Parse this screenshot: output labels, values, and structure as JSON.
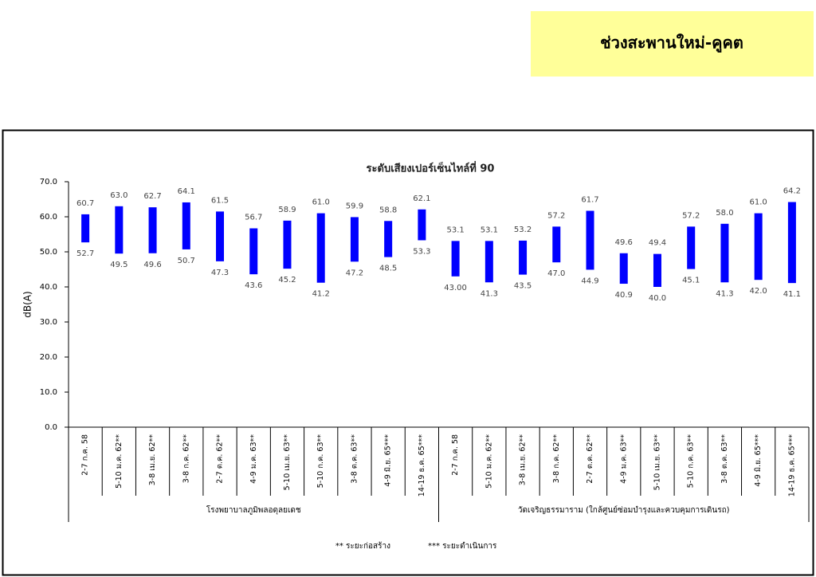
{
  "header": {
    "title": "ช่วงสะพานใหม่-คูคต"
  },
  "chart_data": {
    "type": "range",
    "title": "ระดับเสียงเปอร์เซ็นไทล์ที่ 90",
    "y_label": "dB(A)",
    "color": "#0000ff",
    "groups": [
      {
        "label": "โรงพยาบาลภูมิพลอดุลยเดช",
        "categories": [
          "2-7 ก.ค. 58",
          "5-10 ม.ค. 62**",
          "3-8 เม.ย. 62**",
          "3-8 ก.ค. 62**",
          "2-7 ต.ค. 62**",
          "4-9 ม.ค. 63**",
          "5-10 เม.ย. 63**",
          "5-10 ก.ค. 63**",
          "3-8 ต.ค. 63**",
          "4-9 มิ.ย. 65***",
          "14-19 ธ.ค. 65***"
        ],
        "high": [
          60.7,
          63.0,
          62.7,
          64.1,
          61.5,
          56.7,
          58.9,
          61.0,
          59.9,
          58.8,
          62.1
        ],
        "high_labels": [
          "60.7",
          "63.0",
          "62.7",
          "64.1",
          "61.5",
          "56.7",
          "58.9",
          "61.0",
          "59.9",
          "58.8",
          "62.1"
        ],
        "low": [
          52.7,
          49.5,
          49.6,
          50.7,
          47.3,
          43.6,
          45.2,
          41.2,
          47.2,
          48.5,
          53.3
        ],
        "low_labels": [
          "52.7",
          "49.5",
          "49.6",
          "50.7",
          "47.3",
          "43.6",
          "45.2",
          "41.2",
          "47.2",
          "48.5",
          "53.3"
        ]
      },
      {
        "label": "วัดเจริญธรรมาราม (ใกล้ศูนย์ซ่อมบำรุงและควบคุมการเดินรถ)",
        "categories": [
          "2-7 ก.ค. 58",
          "5-10 ม.ค. 62**",
          "3-8 เม.ย. 62**",
          "3-8 ก.ค. 62**",
          "2-7 ต.ค. 62**",
          "4-9 ม.ค. 63**",
          "5-10 เม.ย. 63**",
          "5-10 ก.ค. 63**",
          "3-8 ต.ค. 63**",
          "4-9 มิ.ย. 65***",
          "14-19 ธ.ค. 65***"
        ],
        "high": [
          53.1,
          53.1,
          53.2,
          57.2,
          61.7,
          49.6,
          49.4,
          57.2,
          58.0,
          61.0,
          64.2
        ],
        "high_labels": [
          "53.1",
          "53.1",
          "53.2",
          "57.2",
          "61.7",
          "49.6",
          "49.4",
          "57.2",
          "58.0",
          "61.0",
          "64.2"
        ],
        "low": [
          43.0,
          41.3,
          43.5,
          47.0,
          44.9,
          40.9,
          40.0,
          45.1,
          41.3,
          42.0,
          41.1
        ],
        "low_labels": [
          "43.00",
          "41.3",
          "43.5",
          "47.0",
          "44.9",
          "40.9",
          "40.0",
          "45.1",
          "41.3",
          "42.0",
          "41.1"
        ]
      }
    ],
    "ylim": [
      0,
      70
    ],
    "yticks": [
      {
        "value": 0,
        "label": "0.0"
      },
      {
        "value": 10,
        "label": "10.0"
      },
      {
        "value": 20,
        "label": "20.0"
      },
      {
        "value": 30,
        "label": "30.0"
      },
      {
        "value": 40,
        "label": "40.0"
      },
      {
        "value": 50,
        "label": "50.0"
      },
      {
        "value": 60,
        "label": "60.0"
      },
      {
        "value": 70,
        "label": "70.0"
      }
    ],
    "notes": [
      "** ระยะก่อสร้าง",
      "*** ระยะดำเนินการ"
    ]
  }
}
